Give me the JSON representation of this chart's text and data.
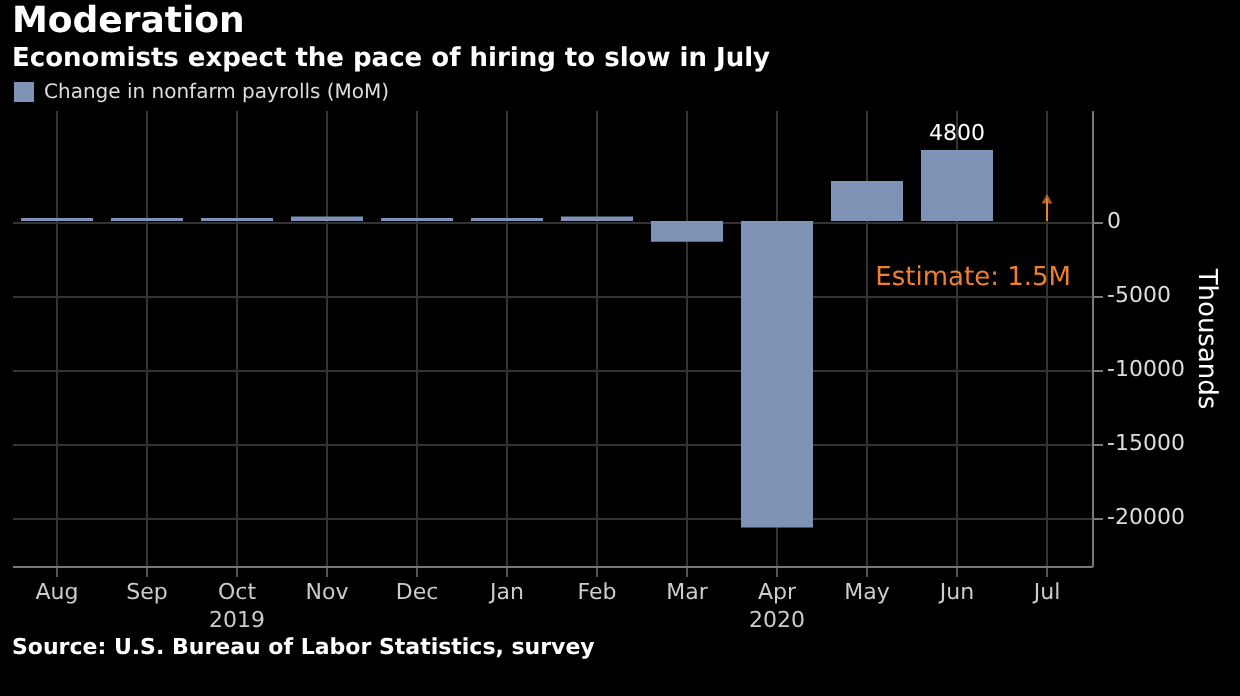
{
  "chart_data": {
    "type": "bar",
    "title": "Moderation",
    "subtitle": "Economists expect the pace of hiring to slow in July",
    "ylabel": "Thousands",
    "categories": [
      "Aug",
      "Sep",
      "Oct\n2019",
      "Nov",
      "Dec",
      "Jan",
      "Feb",
      "Mar",
      "Apr\n2020",
      "May",
      "Jun",
      "Jul"
    ],
    "series": [
      {
        "name": "Change in nonfarm payrolls (MoM)",
        "color": "#7e93b5",
        "values": [
          200,
          200,
          200,
          300,
          200,
          200,
          300,
          -1400,
          -20700,
          2700,
          4800,
          null
        ],
        "value_labels": [
          null,
          null,
          null,
          null,
          null,
          null,
          null,
          null,
          null,
          null,
          "4800",
          null
        ]
      }
    ],
    "ylim": [
      -23300,
      7500
    ],
    "yticks": [
      0,
      -5000,
      -10000,
      -15000,
      -20000
    ],
    "grid": true,
    "legend": "top left",
    "annotations": [
      {
        "text": "Estimate: 1.5M",
        "x": "Jul",
        "y": 1500
      },
      "Source: U.S. Bureau of Labor Statistics, survey"
    ]
  }
}
